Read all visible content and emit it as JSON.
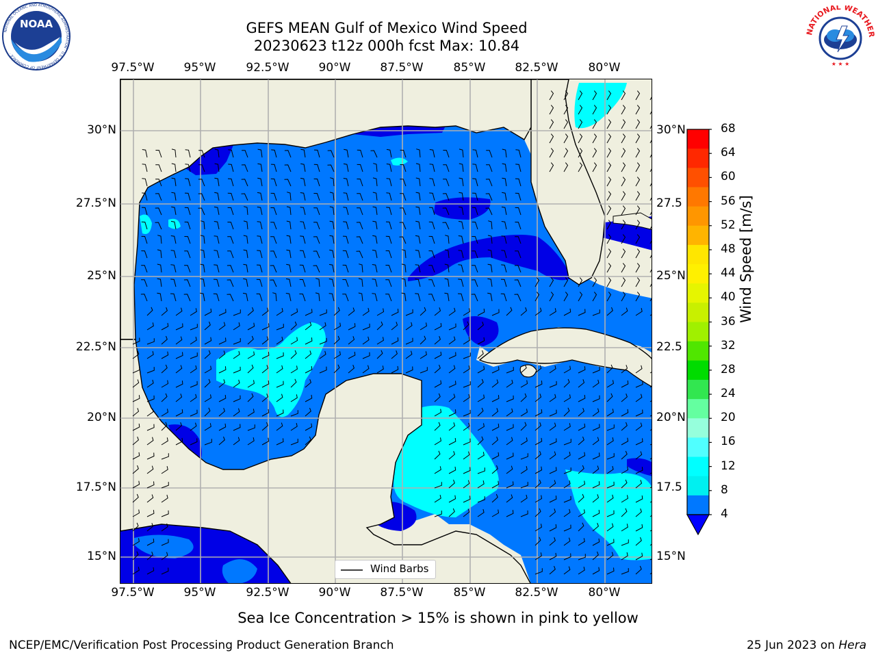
{
  "title": {
    "line1": "GEFS MEAN Gulf of Mexico Wind Speed",
    "line2": "20230623 t12z 000h fcst   Max: 10.84"
  },
  "logos": {
    "left": {
      "name": "NOAA",
      "ring_text": "NATIONAL OCEANIC AND ATMOSPHERIC ADMINISTRATION · U.S. DEPARTMENT OF COMMERCE"
    },
    "right": {
      "name": "NATIONAL WEATHER SERVICE"
    }
  },
  "lon_labels": [
    "97.5°W",
    "95°W",
    "92.5°W",
    "90°W",
    "87.5°W",
    "85°W",
    "82.5°W",
    "80°W"
  ],
  "lat_labels_left": [
    "30°N",
    "27.5°N",
    "25°N",
    "22.5°N",
    "20°N",
    "17.5°N",
    "15°N"
  ],
  "lat_labels_right": [
    "30°N",
    "27.5",
    "25°N",
    "22.5",
    "20°N",
    "17.5",
    "15°N"
  ],
  "legend": {
    "label": "Wind Barbs"
  },
  "colorbar": {
    "label": "Wind Speed [m/s]",
    "ticks": [
      "68",
      "64",
      "60",
      "56",
      "52",
      "48",
      "44",
      "40",
      "36",
      "32",
      "28",
      "24",
      "20",
      "16",
      "12",
      "8",
      "4"
    ],
    "colors_top_to_bottom": [
      "#ff0000",
      "#ff2800",
      "#ff5000",
      "#ff7800",
      "#ff9600",
      "#ffb400",
      "#ffe600",
      "#fff000",
      "#e6f500",
      "#c8f000",
      "#a0f000",
      "#50e600",
      "#00dc00",
      "#32e650",
      "#64ffa0",
      "#96ffdc",
      "#50ffff",
      "#00ffff",
      "#00f0f0",
      "#0078ff"
    ],
    "extend_min_color": "#0000ff"
  },
  "subtitle": "Sea Ice Concentration > 15% is shown in pink to yellow",
  "footer": {
    "left": "NCEP/EMC/Verification Post Processing Product Generation Branch",
    "right_date": "25 Jun 2023 on ",
    "right_machine": "Hera"
  },
  "colors": {
    "land": "#efefdf",
    "wind_4_8": "#0078ff",
    "wind_lt_4": "#0000e6",
    "wind_8_12": "#00ffff",
    "wind_12_16": "#50ffff"
  }
}
